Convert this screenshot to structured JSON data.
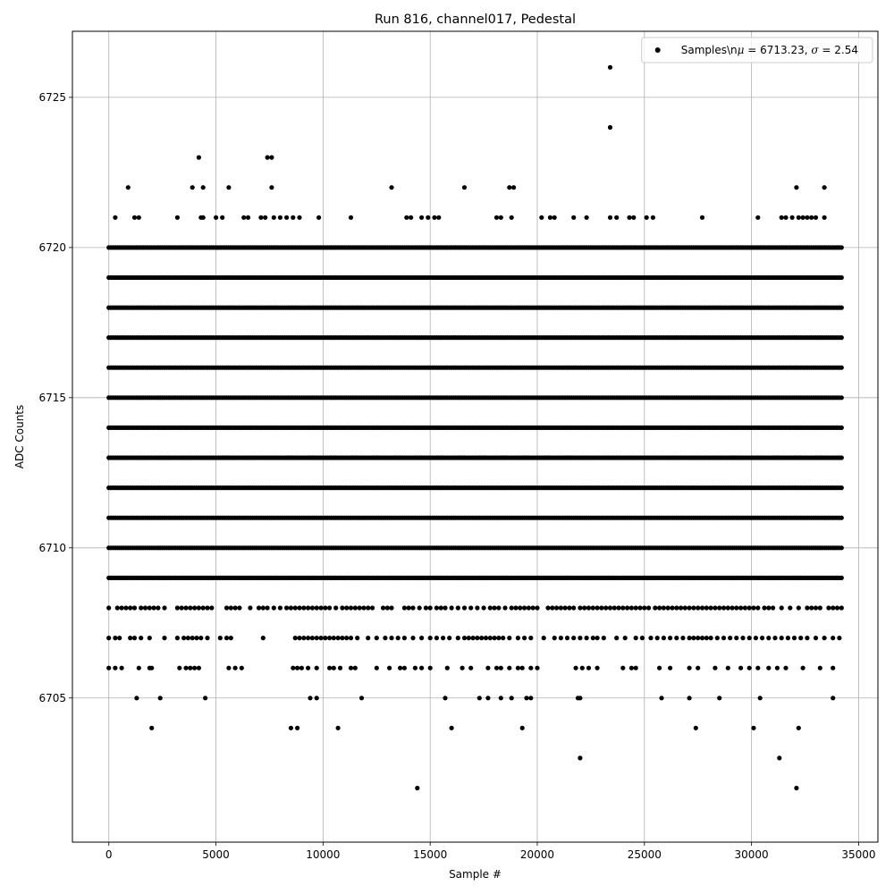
{
  "chart_data": {
    "type": "scatter",
    "title": "Run 816, channel017, Pedestal",
    "xlabel": "Sample #",
    "ylabel": "ADC Counts",
    "xlim": [
      -1700,
      35900
    ],
    "ylim": [
      6700.2,
      6727.2
    ],
    "xticks": [
      0,
      5000,
      10000,
      15000,
      20000,
      25000,
      30000,
      35000
    ],
    "yticks": [
      6705,
      6710,
      6715,
      6720,
      6725
    ],
    "grid": true,
    "legend_position": "top-right",
    "marker_color": "#000000",
    "series": [
      {
        "name": "Samples\\nμ = 6713.23, σ = 2.54",
        "legend_math": {
          "prefix": "Samples\\n",
          "mu_symbol": "μ",
          "mu_value": " = 6713.23, ",
          "sigma_symbol": "σ",
          "sigma_value": " = 2.54"
        },
        "x_max": 34200,
        "levels": [
          {
            "y": 6706,
            "x": [
              0,
              300,
              600,
              1400,
              1900,
              2000,
              3300,
              3600,
              3800,
              4000,
              4200,
              5600,
              5900,
              6200,
              8600,
              8800,
              9000,
              9300,
              9700,
              10300,
              10500,
              10800,
              11300,
              11500,
              12500,
              13100,
              13600,
              13800,
              14300,
              14600,
              15000,
              15800,
              16500,
              16900,
              17700,
              18100,
              18300,
              18700,
              19100,
              19300,
              19700,
              20000,
              21800,
              22100,
              22400,
              22800,
              24000,
              24400,
              24600,
              25700,
              26200,
              27100,
              27500,
              28300,
              28900,
              29500,
              29900,
              30300,
              30800,
              31200,
              31600,
              32400,
              33200,
              33800
            ]
          },
          {
            "y": 6705,
            "x": [
              1300,
              2400,
              4500,
              9400,
              9700,
              11800,
              15700,
              17300,
              17700,
              18300,
              18800,
              19500,
              19700,
              21900,
              22000,
              25800,
              27100,
              28500,
              30400,
              33800
            ]
          },
          {
            "y": 6704,
            "x": [
              2000,
              8500,
              8800,
              10700,
              16000,
              19300,
              27400,
              30100,
              32200
            ]
          },
          {
            "y": 6703,
            "x": [
              22000,
              31300
            ]
          },
          {
            "y": 6702,
            "x": [
              14400,
              32100
            ]
          },
          {
            "y": 6721,
            "x": [
              300,
              1200,
              1400,
              3200,
              4300,
              4400,
              5000,
              5300,
              6300,
              6500,
              7100,
              7300,
              7700,
              8000,
              8300,
              8600,
              8900,
              9800,
              11300,
              13900,
              14100,
              14600,
              14900,
              15200,
              15400,
              18100,
              18300,
              18800,
              20200,
              20600,
              20800,
              21700,
              22300,
              23400,
              23700,
              24300,
              24500,
              25100,
              25400,
              27700,
              30300,
              31400,
              31600,
              31900,
              32200,
              32400,
              32600,
              32800,
              33000,
              33400
            ]
          },
          {
            "y": 6722,
            "x": [
              900,
              3900,
              4400,
              5600,
              7600,
              13200,
              16600,
              18700,
              18900,
              32100,
              33400
            ]
          },
          {
            "y": 6723,
            "x": [
              4200,
              7400,
              7600
            ]
          },
          {
            "y": 6724,
            "x": [
              23400
            ]
          },
          {
            "y": 6726,
            "x": [
              23400
            ]
          },
          {
            "y": 6707,
            "x": [
              0,
              300,
              500,
              1000,
              1200,
              1500,
              1900,
              2600,
              3200,
              3500,
              3700,
              3900,
              4100,
              4300,
              4600,
              5200,
              5500,
              5700,
              7200,
              8700,
              8900,
              9100,
              9300,
              9500,
              9700,
              9900,
              10100,
              10300,
              10500,
              10700,
              10900,
              11100,
              11300,
              11600,
              12100,
              12500,
              12900,
              13200,
              13500,
              13800,
              14200,
              14600,
              15000,
              15300,
              15600,
              15900,
              16300,
              16600,
              16800,
              17000,
              17200,
              17400,
              17600,
              17800,
              18000,
              18200,
              18400,
              18700,
              19100,
              19400,
              19700,
              20300,
              20800,
              21100,
              21400,
              21700,
              22000,
              22300,
              22600,
              22800,
              23100,
              23700,
              24100,
              24600,
              24900,
              25300,
              25600,
              25900,
              26200,
              26500,
              26800,
              27100,
              27300,
              27500,
              27700,
              27900,
              28100,
              28400,
              28700,
              29000,
              29300,
              29600,
              29900,
              30200,
              30500,
              30800,
              31100,
              31400,
              31700,
              32000,
              32300,
              32600,
              33000,
              33400,
              33800,
              34100
            ]
          },
          {
            "y": 6708,
            "x": [
              0,
              400,
              600,
              800,
              1000,
              1200,
              1500,
              1700,
              1900,
              2100,
              2300,
              2600,
              3200,
              3400,
              3600,
              3800,
              4000,
              4200,
              4400,
              4600,
              4800,
              5500,
              5700,
              5900,
              6100,
              6600,
              7000,
              7200,
              7400,
              7700,
              8000,
              8300,
              8500,
              8700,
              8900,
              9100,
              9300,
              9500,
              9700,
              9900,
              10100,
              10300,
              10600,
              10900,
              11100,
              11300,
              11500,
              11700,
              11900,
              12100,
              12300,
              12800,
              13000,
              13200,
              13800,
              14000,
              14200,
              14500,
              14800,
              15000,
              15300,
              15500,
              15700,
              16000,
              16300,
              16600,
              16900,
              17200,
              17500,
              17800,
              18000,
              18200,
              18500,
              18800,
              19000,
              19200,
              19400,
              19600,
              19800,
              20000,
              20500,
              20700,
              20900,
              21100,
              21300,
              21500,
              21700,
              22000,
              22200,
              22400,
              22600,
              22800,
              23000,
              23200,
              23400,
              23600,
              23800,
              24000,
              24200,
              24400,
              24600,
              24800,
              25000,
              25200,
              25500,
              25700,
              25900,
              26100,
              26300,
              26500,
              26700,
              26900,
              27100,
              27300,
              27500,
              27700,
              27900,
              28100,
              28300,
              28500,
              28700,
              28900,
              29100,
              29300,
              29500,
              29700,
              29900,
              30100,
              30300,
              30600,
              30800,
              31000,
              31400,
              31800,
              32200,
              32600,
              32800,
              33000,
              33200,
              33600,
              33800,
              34000,
              34200
            ]
          }
        ],
        "dense_band": {
          "y_values": [
            6709,
            6710,
            6711,
            6712,
            6713,
            6714,
            6715,
            6716,
            6717,
            6718,
            6719,
            6720
          ],
          "x_start": 0,
          "x_end": 34200
        }
      }
    ]
  }
}
